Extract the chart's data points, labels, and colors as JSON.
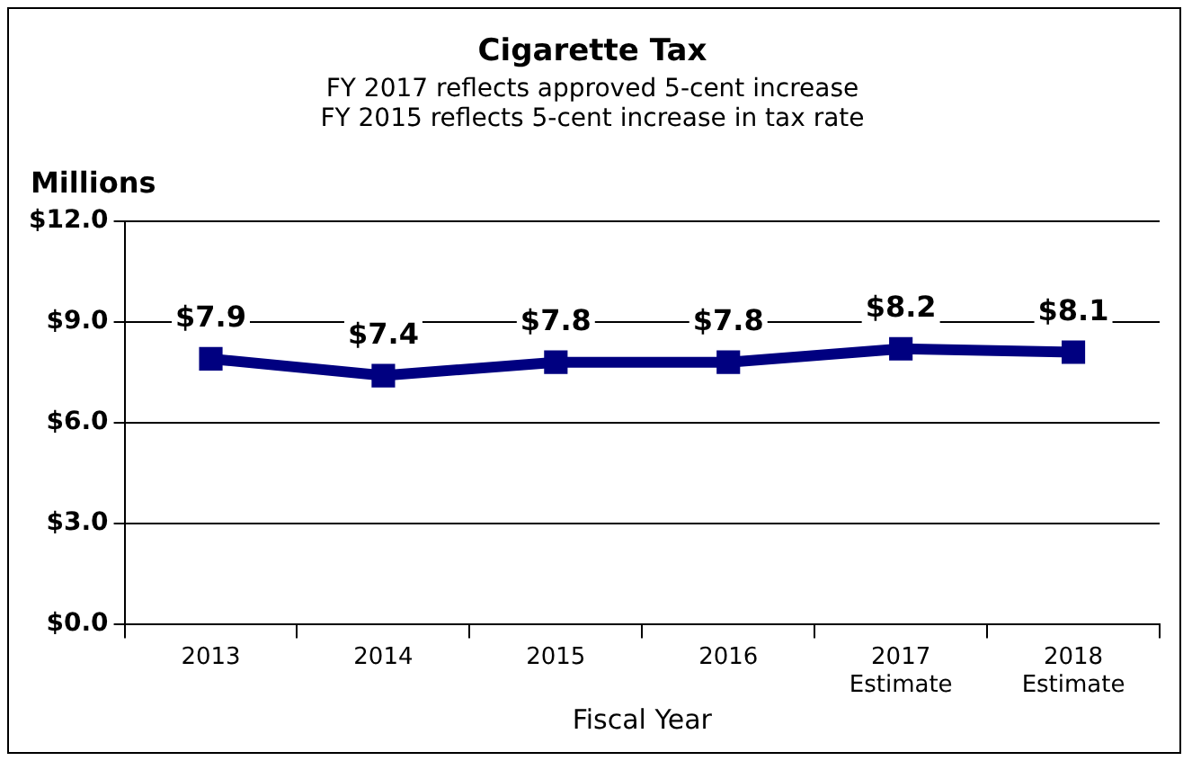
{
  "chart_data": {
    "type": "line",
    "title": "Cigarette Tax",
    "subtitle": "FY 2017 reflects approved 5-cent increase\nFY 2015 reflects 5-cent increase in tax rate",
    "xlabel": "Fiscal Year",
    "ylabel": "Millions",
    "categories": [
      "2013",
      "2014",
      "2015",
      "2016",
      "2017\nEstimate",
      "2018\nEstimate"
    ],
    "series": [
      {
        "color": "#000080",
        "values": [
          7.9,
          7.4,
          7.8,
          7.8,
          8.2,
          8.1
        ],
        "value_labels": [
          "$7.9",
          "$7.4",
          "$7.8",
          "$7.8",
          "$8.2",
          "$8.1"
        ]
      }
    ],
    "ylim": [
      0,
      12
    ],
    "yticks": [
      {
        "value": 0,
        "label": "$0.0"
      },
      {
        "value": 3,
        "label": "$3.0"
      },
      {
        "value": 6,
        "label": "$6.0"
      },
      {
        "value": 9,
        "label": "$9.0"
      },
      {
        "value": 12,
        "label": "$12.0"
      }
    ],
    "grid": "y",
    "legend": false,
    "marker": "square",
    "line_style": "solid"
  }
}
